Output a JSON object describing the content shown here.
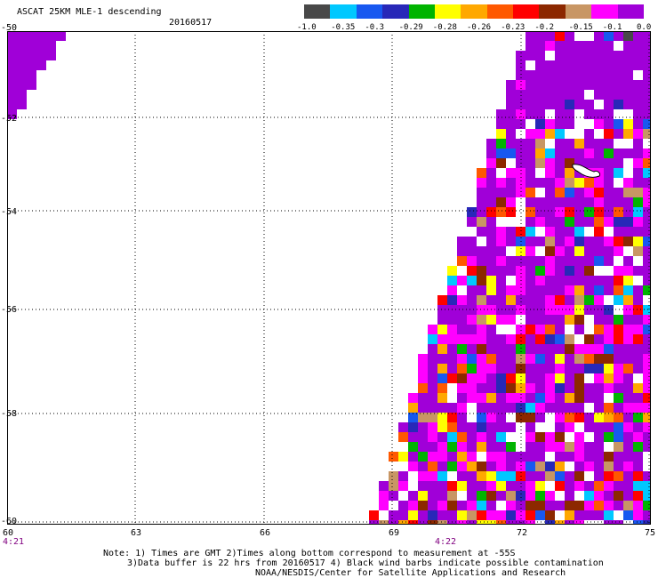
{
  "header": {
    "title": "ASCAT 25KM MLE-1 descending",
    "date": "20160517"
  },
  "colorbar": {
    "colors": [
      "#484848",
      "#00c8ff",
      "#1858f0",
      "#2828b8",
      "#00b400",
      "#ffff00",
      "#ffa800",
      "#ff5800",
      "#ff0000",
      "#8c2800",
      "#c89664",
      "#ff00ff",
      "#a000d8"
    ],
    "labels": [
      "-1.0",
      "-0.35",
      "-0.3",
      "-0.29",
      "-0.28",
      "-0.26",
      "-0.23",
      "-0.2",
      "-0.15",
      "-0.1",
      "0.0"
    ]
  },
  "axes": {
    "lat_labels": [
      "-50",
      "-52",
      "-54",
      "-56",
      "-58",
      "-60"
    ],
    "lon_labels": [
      "60",
      "63",
      "66",
      "69",
      "72",
      "75"
    ],
    "time_labels": [
      "4:21",
      "4:22"
    ]
  },
  "notes": {
    "line1": "Note: 1) Times are GMT 2)Times along bottom correspond to measurement at -55S",
    "line2": "3)Data buffer is 22 hrs from 20160517 4) Black wind barbs indicate possible contamination",
    "line3": "NOAA/NESDIS/Center for Satellite Applications and Research"
  }
}
